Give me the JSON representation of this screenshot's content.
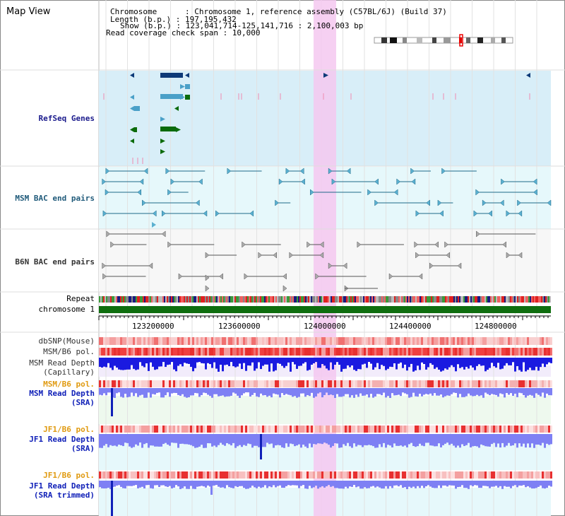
{
  "view": {
    "title": "Map View",
    "info": {
      "chromosome": "Chromosome      : Chromosome 1, reference assembly (C57BL/6J) (Build 37)",
      "length": "Length (b.p.) : 197,195,432",
      "show": "Show (b.p.) : 123,041,714-125,141,716 : 2,100,003 bp",
      "span": "Read coverage check span : 10,000"
    }
  },
  "tracks": {
    "refseq": "RefSeq Genes",
    "msm_bac": "MSM BAC end pairs",
    "b6n_bac": "B6N BAC end pairs",
    "repeat": "Repeat",
    "chromosome": "chromosome 1",
    "dbsnp": "dbSNP(Mouse)",
    "msm_pol": "MSM/B6 pol.",
    "msm_depth_cap_1": "MSM Read Depth",
    "msm_depth_cap_2": "(Capillary)",
    "msm_pol2": "MSM/B6 pol.",
    "msm_sra_1": "MSM Read Depth",
    "msm_sra_2": "(SRA)",
    "jf1_pol": "JF1/B6 pol.",
    "jf1_sra_1": "JF1 Read Depth",
    "jf1_sra_2": "(SRA)",
    "jf1_pol2": "JF1/B6 pol.",
    "jf1_trim_1": "JF1 Read Depth",
    "jf1_trim_2": "(SRA trimmed)"
  },
  "axis": {
    "ticks": [
      "123200000",
      "123600000",
      "124000000",
      "124400000",
      "124800000"
    ]
  },
  "colors": {
    "highlight": "#f4c8f0",
    "refseq_bg": "#d8eef8",
    "msm_bac_bg": "#e6f8fb",
    "b6n_bac_bg": "#f7f7f7",
    "chromosome_bar": "#0f6e0f",
    "snp_red": "#f03030",
    "depth_blue": "#1a1ae0",
    "sra_blue": "#7e80f4"
  }
}
